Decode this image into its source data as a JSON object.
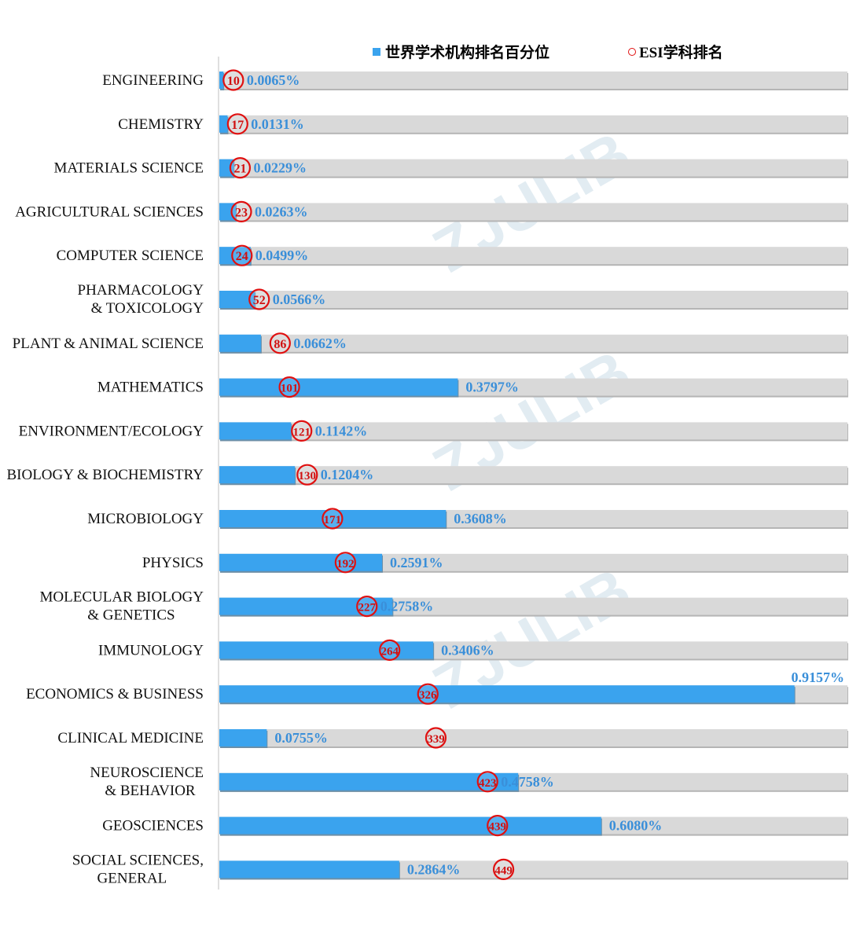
{
  "legend": {
    "percentile_label": "世界学术机构排名百分位",
    "rank_label": "ESI学科排名"
  },
  "watermark": "ZJULIB",
  "colors": {
    "bar": "#3aa3ee",
    "track": "#d9d9d9",
    "value_text": "#3a8fd9",
    "rank_circle": "#e01010"
  },
  "chart_data": {
    "type": "bar",
    "orientation": "horizontal",
    "categories": [
      "ENGINEERING",
      "CHEMISTRY",
      "MATERIALS SCIENCE",
      "AGRICULTURAL SCIENCES",
      "COMPUTER SCIENCE",
      "PHARMACOLOGY & TOXICOLOGY",
      "PLANT & ANIMAL SCIENCE",
      "MATHEMATICS",
      "ENVIRONMENT/ECOLOGY",
      "BIOLOGY & BIOCHEMISTRY",
      "MICROBIOLOGY",
      "PHYSICS",
      "MOLECULAR BIOLOGY & GENETICS",
      "IMMUNOLOGY",
      "ECONOMICS & BUSINESS",
      "CLINICAL MEDICINE",
      "NEUROSCIENCE & BEHAVIOR",
      "GEOSCIENCES",
      "SOCIAL SCIENCES, GENERAL"
    ],
    "series": [
      {
        "name": "世界学术机构排名百分位",
        "values": [
          0.0065,
          0.0131,
          0.0229,
          0.0263,
          0.0499,
          0.0566,
          0.0662,
          0.3797,
          0.1142,
          0.1204,
          0.3608,
          0.2591,
          0.2758,
          0.3406,
          0.9157,
          0.0755,
          0.4758,
          0.608,
          0.2864
        ],
        "labels": [
          "0.0065%",
          "0.0131%",
          "0.0229%",
          "0.0263%",
          "0.0499%",
          "0.0566%",
          "0.0662%",
          "0.3797%",
          "0.1142%",
          "0.1204%",
          "0.3608%",
          "0.2591%",
          "0.2758%",
          "0.3406%",
          "0.9157%",
          "0.0755%",
          "0.4758%",
          "0.6080%",
          "0.2864%"
        ]
      },
      {
        "name": "ESI学科排名",
        "values": [
          10,
          17,
          21,
          23,
          24,
          52,
          86,
          101,
          121,
          130,
          171,
          192,
          227,
          264,
          326,
          339,
          423,
          439,
          449
        ]
      }
    ],
    "xlim": [
      0,
      1.0
    ],
    "rank_axis_range": [
      0,
      1000
    ]
  }
}
